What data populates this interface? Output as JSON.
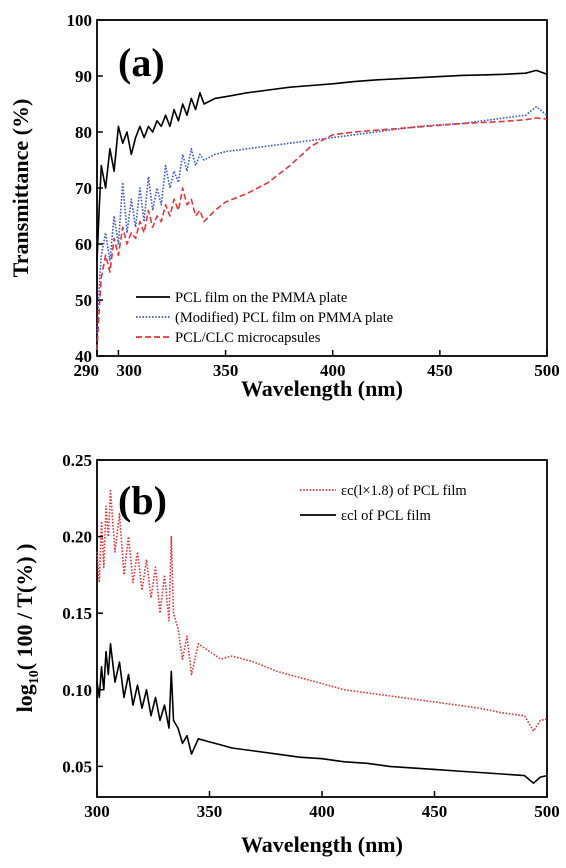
{
  "chart_data": [
    {
      "type": "line",
      "panel_label": "(a)",
      "xlabel": "Wavelength (nm)",
      "ylabel": "Transmittance (%)",
      "xlim": [
        290,
        500
      ],
      "ylim": [
        40,
        100
      ],
      "x_ticks": [
        290,
        300,
        350,
        400,
        450,
        500
      ],
      "x_tick_labels": [
        "290",
        "300",
        "350",
        "400",
        "450",
        "500"
      ],
      "y_ticks": [
        40,
        50,
        60,
        70,
        80,
        90,
        100
      ],
      "y_tick_labels": [
        "40",
        "50",
        "60",
        "70",
        "80",
        "90",
        "100"
      ],
      "legend_position": "bottom-left",
      "grid": false,
      "series": [
        {
          "name": "PCL film on the PMMA plate",
          "color": "#000000",
          "style": "solid",
          "x": [
            290,
            291,
            292,
            294,
            296,
            298,
            300,
            302,
            304,
            306,
            308,
            310,
            312,
            314,
            316,
            318,
            320,
            322,
            324,
            326,
            328,
            330,
            332,
            334,
            336,
            338,
            340,
            345,
            350,
            360,
            370,
            380,
            390,
            400,
            410,
            420,
            430,
            440,
            450,
            460,
            470,
            480,
            490,
            495,
            500
          ],
          "y": [
            57,
            66,
            74,
            70,
            77,
            73,
            81,
            78,
            80,
            76,
            79,
            81,
            79,
            81,
            80,
            82,
            81,
            83,
            81,
            84,
            82,
            85,
            83,
            86,
            84,
            87,
            85,
            86,
            86.3,
            87,
            87.5,
            88,
            88.3,
            88.6,
            89,
            89.3,
            89.5,
            89.7,
            89.9,
            90.1,
            90.2,
            90.3,
            90.5,
            91,
            90.3
          ]
        },
        {
          "name": "(Modified) PCL film on PMMA plate",
          "color": "#3b55d6",
          "style": "dotted",
          "x": [
            290,
            291,
            292,
            294,
            296,
            298,
            300,
            302,
            304,
            306,
            308,
            310,
            312,
            314,
            316,
            318,
            320,
            322,
            324,
            326,
            328,
            330,
            332,
            334,
            336,
            338,
            340,
            345,
            350,
            360,
            370,
            380,
            390,
            400,
            410,
            420,
            430,
            440,
            450,
            460,
            470,
            480,
            490,
            495,
            500
          ],
          "y": [
            44,
            52,
            58,
            62,
            57,
            65,
            60,
            71,
            62,
            68,
            63,
            70,
            64,
            72,
            66,
            70,
            67,
            74,
            70,
            73,
            71,
            76,
            73,
            77,
            74,
            76,
            75,
            76,
            76.5,
            77,
            77.5,
            78,
            78.5,
            79,
            79.5,
            80,
            80.5,
            81,
            81.3,
            81.5,
            82,
            82.5,
            83,
            84.5,
            83
          ]
        },
        {
          "name": "PCL/CLC microcapsules",
          "color": "#e8343a",
          "style": "dashed",
          "x": [
            290,
            291,
            292,
            294,
            296,
            298,
            300,
            302,
            304,
            306,
            308,
            310,
            312,
            314,
            316,
            318,
            320,
            322,
            324,
            326,
            328,
            330,
            332,
            334,
            336,
            338,
            340,
            345,
            350,
            360,
            370,
            380,
            390,
            400,
            410,
            420,
            430,
            440,
            450,
            460,
            470,
            480,
            490,
            495,
            500
          ],
          "y": [
            41,
            48,
            54,
            58,
            55,
            61,
            58,
            63,
            60,
            62,
            61,
            64,
            62,
            66,
            63,
            65,
            64,
            67,
            65,
            68,
            66,
            70,
            67,
            68,
            65,
            66,
            64,
            66,
            67.5,
            69,
            71,
            74,
            77.5,
            79.5,
            80,
            80.3,
            80.6,
            80.9,
            81.2,
            81.5,
            81.7,
            81.9,
            82.2,
            82.5,
            82.3
          ]
        }
      ]
    },
    {
      "type": "line",
      "panel_label": "(b)",
      "xlabel": "Wavelength (nm)",
      "ylabel_main": "log",
      "ylabel_sub": "10",
      "ylabel_rest": "( 100 / T(%) )",
      "xlim": [
        300,
        500
      ],
      "ylim": [
        0.03,
        0.25
      ],
      "x_ticks": [
        300,
        350,
        400,
        450,
        500
      ],
      "x_tick_labels": [
        "300",
        "350",
        "400",
        "450",
        "500"
      ],
      "y_ticks": [
        0.05,
        0.1,
        0.15,
        0.2,
        0.25
      ],
      "y_tick_labels": [
        "0.05",
        "0.10",
        "0.15",
        "0.20",
        "0.25"
      ],
      "legend_position": "top-right",
      "grid": false,
      "series": [
        {
          "name": "εc(l×1.8) of PCL film",
          "color": "#e8343a",
          "style": "dotted",
          "x": [
            300,
            301,
            302,
            303,
            304,
            305,
            306,
            308,
            310,
            312,
            314,
            316,
            318,
            320,
            322,
            324,
            326,
            328,
            330,
            332,
            333,
            334,
            336,
            338,
            340,
            342,
            345,
            350,
            355,
            360,
            370,
            380,
            390,
            400,
            410,
            420,
            430,
            440,
            450,
            460,
            470,
            480,
            490,
            494,
            497,
            500
          ],
          "y": [
            0.19,
            0.17,
            0.21,
            0.18,
            0.22,
            0.2,
            0.23,
            0.19,
            0.215,
            0.175,
            0.2,
            0.17,
            0.19,
            0.165,
            0.185,
            0.16,
            0.18,
            0.15,
            0.175,
            0.145,
            0.2,
            0.15,
            0.14,
            0.12,
            0.135,
            0.11,
            0.13,
            0.125,
            0.12,
            0.122,
            0.118,
            0.112,
            0.108,
            0.104,
            0.1,
            0.098,
            0.096,
            0.094,
            0.092,
            0.09,
            0.088,
            0.085,
            0.083,
            0.073,
            0.08,
            0.081
          ]
        },
        {
          "name": "εcl of PCL film",
          "color": "#000000",
          "style": "solid",
          "x": [
            300,
            301,
            302,
            303,
            304,
            305,
            306,
            308,
            310,
            312,
            314,
            316,
            318,
            320,
            322,
            324,
            326,
            328,
            330,
            332,
            333,
            334,
            336,
            338,
            340,
            342,
            345,
            350,
            355,
            360,
            370,
            380,
            390,
            400,
            410,
            420,
            430,
            440,
            450,
            460,
            470,
            480,
            490,
            494,
            497,
            500
          ],
          "y": [
            0.105,
            0.095,
            0.115,
            0.1,
            0.125,
            0.11,
            0.13,
            0.105,
            0.118,
            0.095,
            0.11,
            0.09,
            0.103,
            0.088,
            0.1,
            0.083,
            0.095,
            0.08,
            0.09,
            0.075,
            0.112,
            0.08,
            0.075,
            0.065,
            0.07,
            0.058,
            0.068,
            0.066,
            0.064,
            0.062,
            0.06,
            0.058,
            0.056,
            0.055,
            0.053,
            0.052,
            0.05,
            0.049,
            0.048,
            0.047,
            0.046,
            0.045,
            0.044,
            0.039,
            0.043,
            0.044
          ]
        }
      ]
    }
  ]
}
